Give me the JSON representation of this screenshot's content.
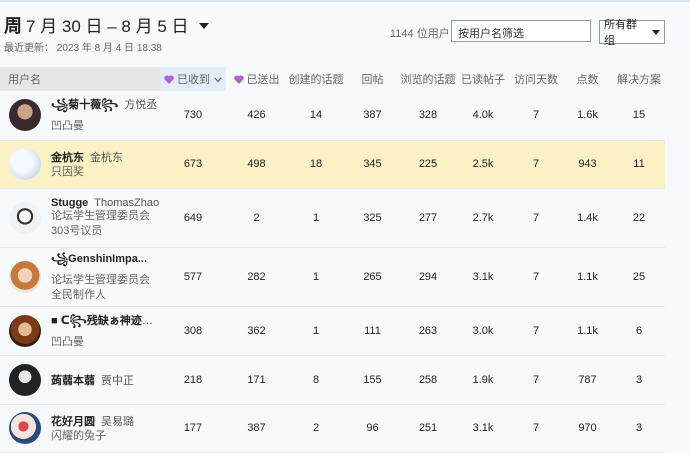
{
  "header": {
    "period": "周",
    "date_range": "7 月 30 日 – 8 月 5 日",
    "last_updated": "最近更新： 2023 年 8 月 4 日 18:38",
    "user_count": "1144 位用户",
    "filter_placeholder": "按用户名筛选",
    "group_select": "所有群组"
  },
  "table": {
    "columns": [
      "用户名",
      "已收到",
      "已送出",
      "创建的话题",
      "回帖",
      "浏览的话题",
      "已读帖子",
      "访问天数",
      "点数",
      "解决方案"
    ],
    "rows": [
      {
        "username": "꧁菊十薇꧂",
        "full_name": "方悦丞",
        "titles": [
          "凹凸曼"
        ],
        "stats": [
          730,
          426,
          14,
          387,
          328,
          "4.0k",
          7,
          "1.6k",
          15
        ]
      },
      {
        "username": "金杭东",
        "full_name": "金杭东",
        "titles": [
          "只因奖"
        ],
        "stats": [
          673,
          498,
          18,
          345,
          225,
          "2.5k",
          7,
          943,
          11
        ]
      },
      {
        "username": "Stugge",
        "full_name": "ThomasZhao",
        "titles": [
          "论坛学生管理委员会",
          "303号议员"
        ],
        "stats": [
          649,
          2,
          1,
          325,
          277,
          "2.7k",
          7,
          "1.4k",
          22
        ]
      },
      {
        "username": "꧁GenshinImpa...",
        "full_name": "",
        "titles": [
          "论坛学生管理委员会",
          "全民制作人"
        ],
        "stats": [
          577,
          282,
          1,
          265,
          294,
          "3.1k",
          7,
          "1.1k",
          25
        ]
      },
      {
        "username": "■ ᑕ꧂残缺ぁ神迹々...",
        "full_name": "",
        "titles": [
          "凹凸曼"
        ],
        "stats": [
          308,
          362,
          1,
          111,
          263,
          "3.0k",
          7,
          "1.1k",
          6
        ]
      },
      {
        "username": "蒟蒻本蒻",
        "full_name": "贾中正",
        "titles": [],
        "stats": [
          218,
          171,
          8,
          155,
          258,
          "1.9k",
          7,
          787,
          3
        ]
      },
      {
        "username": "花好月圆",
        "full_name": "吴易璐",
        "titles": [
          "闪耀的兔子"
        ],
        "stats": [
          177,
          387,
          2,
          96,
          251,
          "3.1k",
          7,
          970,
          3
        ]
      }
    ]
  }
}
